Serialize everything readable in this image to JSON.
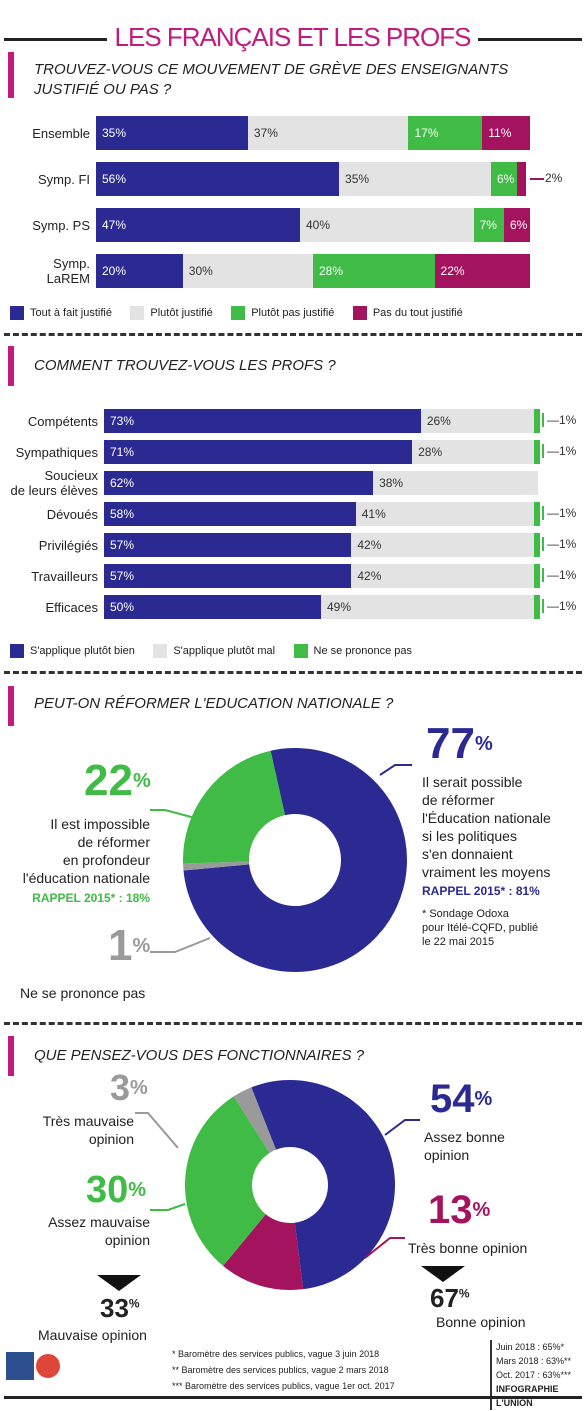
{
  "title": "LES FRANÇAIS ET LES PROFS",
  "colors": {
    "dark_blue": "#2b2a92",
    "light_grey": "#e3e3e3",
    "green": "#3fbb46",
    "magenta": "#a3135e",
    "title_pink": "#c21a7e",
    "grey": "#9a9a9a"
  },
  "section1": {
    "question_line1": "TROUVEZ-VOUS CE MOUVEMENT DE GRÈVE DES ENSEIGNANTS",
    "question_line2": "JUSTIFIÉ OU PAS ?",
    "outside_label": "2%",
    "legend": [
      "Tout à fait justifié",
      "Plutôt justifié",
      "Plutôt pas justifié",
      "Pas du tout justifié"
    ]
  },
  "section2": {
    "question": "COMMENT TROUVEZ-VOUS LES PROFS ?",
    "legend": [
      "S'applique plutôt bien",
      "S'applique plutôt mal",
      "Ne se prononce pas"
    ]
  },
  "section3": {
    "question": "PEUT-ON RÉFORMER L'EDUCATION NATIONALE ?",
    "big_left": "22",
    "big_right": "77",
    "big_small": "1",
    "pct": "%",
    "left_text": [
      "Il est impossible",
      "de réformer",
      "en profondeur",
      "l'éducation nationale"
    ],
    "left_rappel": "RAPPEL 2015* : 18%",
    "right_text": [
      "Il serait possible",
      "de réformer",
      "l'Éducation nationale",
      "si les politiques",
      "s'en donnaient",
      "vraiment les moyens"
    ],
    "right_rappel": "RAPPEL 2015* : 81%",
    "small_label": "Ne se prononce pas",
    "footnote": [
      "* Sondage Odoxa",
      "pour Itélé-CQFD, publié",
      "le 22 mai 2015"
    ]
  },
  "section4": {
    "question": "QUE PENSEZ-VOUS DES FONCTIONNAIRES ?",
    "pct": "%",
    "tres_mauvaise_value": "3",
    "tres_mauvaise_label": [
      "Très mauvaise",
      "opinion"
    ],
    "assez_mauvaise_value": "30",
    "assez_mauvaise_label": [
      "Assez mauvaise",
      "opinion"
    ],
    "mauvaise_total_value": "33",
    "mauvaise_total_label": "Mauvaise opinion",
    "assez_bonne_value": "54",
    "assez_bonne_label": [
      "Assez bonne",
      "opinion"
    ],
    "tres_bonne_value": "13",
    "tres_bonne_label": "Très bonne opinion",
    "bonne_total_value": "67",
    "bonne_total_label": "Bonne opinion",
    "sources": [
      "* Baromètre des services publics, vague 3 juin 2018",
      "** Baromètre des services publics, vague 2 mars 2018",
      "*** Baromètre des services publics, vague 1er oct. 2017"
    ],
    "history": [
      "Juin 2018 : 65%*",
      "Mars 2018 : 63%**",
      "Oct. 2017 : 63%***"
    ],
    "credit": "INFOGRAPHIE L'UNION"
  },
  "chart_data": [
    {
      "type": "bar",
      "stacked": true,
      "orientation": "horizontal",
      "title": "TROUVEZ-VOUS CE MOUVEMENT DE GRÈVE DES ENSEIGNANTS JUSTIFIÉ OU PAS ?",
      "categories": [
        "Ensemble",
        "Symp. FI",
        "Symp. PS",
        "Symp. LaREM"
      ],
      "series": [
        {
          "name": "Tout à fait justifié",
          "values": [
            35,
            56,
            47,
            20
          ]
        },
        {
          "name": "Plutôt justifié",
          "values": [
            37,
            35,
            40,
            30
          ]
        },
        {
          "name": "Plutôt pas justifié",
          "values": [
            17,
            6,
            7,
            28
          ]
        },
        {
          "name": "Pas du tout justifié",
          "values": [
            11,
            2,
            6,
            22
          ]
        }
      ]
    },
    {
      "type": "bar",
      "stacked": true,
      "orientation": "horizontal",
      "title": "COMMENT TROUVEZ-VOUS LES PROFS ?",
      "categories": [
        "Compétents",
        "Sympathiques",
        "Soucieux de leurs élèves",
        "Dévoués",
        "Privilégiés",
        "Travailleurs",
        "Efficaces"
      ],
      "series": [
        {
          "name": "S'applique plutôt bien",
          "values": [
            73,
            71,
            62,
            58,
            57,
            57,
            50
          ]
        },
        {
          "name": "S'applique plutôt mal",
          "values": [
            26,
            28,
            38,
            41,
            42,
            42,
            49
          ]
        },
        {
          "name": "Ne se prononce pas",
          "values": [
            1,
            1,
            0,
            1,
            1,
            1,
            1
          ]
        }
      ]
    },
    {
      "type": "pie",
      "donut": true,
      "title": "PEUT-ON RÉFORMER L'EDUCATION NATIONALE ?",
      "labels": [
        "Il serait possible de réformer l'Éducation nationale si les politiques s'en donnaient vraiment les moyens",
        "Il est impossible de réformer en profondeur l'éducation nationale",
        "Ne se prononce pas"
      ],
      "values": [
        77,
        22,
        1
      ]
    },
    {
      "type": "pie",
      "donut": true,
      "title": "QUE PENSEZ-VOUS DES FONCTIONNAIRES ?",
      "labels": [
        "Assez bonne opinion",
        "Très bonne opinion",
        "Assez mauvaise opinion",
        "Très mauvaise opinion"
      ],
      "values": [
        54,
        13,
        30,
        3
      ]
    }
  ]
}
